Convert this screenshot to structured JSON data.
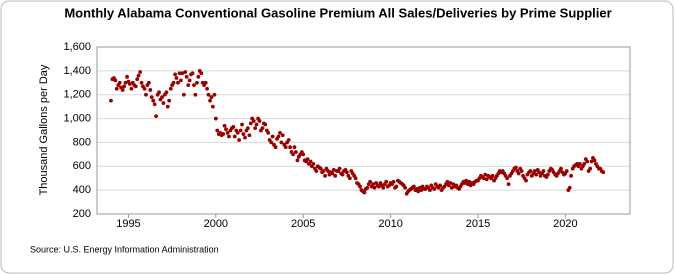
{
  "chart_data": {
    "type": "scatter",
    "title": "Monthly Alabama Conventional Gasoline Premium All Sales/Deliveries by Prime Supplier",
    "ylabel": "Thousand Gallons per Day",
    "source": "Source: U.S. Energy Information Administration",
    "color": "#990000",
    "grid": true,
    "xlim": [
      1993.2,
      2023.7
    ],
    "xticks": [
      1995,
      2000,
      2005,
      2010,
      2015,
      2020
    ],
    "ylim": [
      200,
      1600
    ],
    "yticks": [
      200,
      400,
      600,
      800,
      {
        "value": 1000,
        "label": "1,000"
      },
      {
        "value": 1200,
        "label": "1,200"
      },
      {
        "value": 1400,
        "label": "1,400"
      },
      {
        "value": 1600,
        "label": "1,600"
      }
    ],
    "x": [
      1994,
      1994.08,
      1994.17,
      1994.25,
      1994.33,
      1994.42,
      1994.5,
      1994.58,
      1994.67,
      1994.75,
      1994.83,
      1994.92,
      1995,
      1995.08,
      1995.17,
      1995.25,
      1995.33,
      1995.42,
      1995.5,
      1995.58,
      1995.67,
      1995.75,
      1995.83,
      1995.92,
      1996,
      1996.08,
      1996.17,
      1996.25,
      1996.33,
      1996.42,
      1996.5,
      1996.58,
      1996.67,
      1996.75,
      1996.83,
      1996.92,
      1997,
      1997.08,
      1997.17,
      1997.25,
      1997.33,
      1997.42,
      1997.5,
      1997.58,
      1997.67,
      1997.75,
      1997.83,
      1997.92,
      1998,
      1998.08,
      1998.17,
      1998.25,
      1998.33,
      1998.42,
      1998.5,
      1998.58,
      1998.67,
      1998.75,
      1998.83,
      1998.92,
      1999,
      1999.08,
      1999.17,
      1999.25,
      1999.33,
      1999.42,
      1999.5,
      1999.58,
      1999.67,
      1999.75,
      1999.83,
      1999.92,
      2000,
      2000.08,
      2000.17,
      2000.25,
      2000.33,
      2000.42,
      2000.5,
      2000.58,
      2000.67,
      2000.75,
      2000.83,
      2000.92,
      2001,
      2001.08,
      2001.17,
      2001.25,
      2001.33,
      2001.42,
      2001.5,
      2001.58,
      2001.67,
      2001.75,
      2001.83,
      2001.92,
      2002,
      2002.08,
      2002.17,
      2002.25,
      2002.33,
      2002.42,
      2002.5,
      2002.58,
      2002.67,
      2002.75,
      2002.83,
      2002.92,
      2003,
      2003.08,
      2003.17,
      2003.25,
      2003.33,
      2003.42,
      2003.5,
      2003.58,
      2003.67,
      2003.75,
      2003.83,
      2003.92,
      2004,
      2004.08,
      2004.17,
      2004.25,
      2004.33,
      2004.42,
      2004.5,
      2004.58,
      2004.67,
      2004.75,
      2004.83,
      2004.92,
      2005,
      2005.08,
      2005.17,
      2005.25,
      2005.33,
      2005.42,
      2005.5,
      2005.58,
      2005.67,
      2005.75,
      2005.83,
      2005.92,
      2006,
      2006.08,
      2006.17,
      2006.25,
      2006.33,
      2006.42,
      2006.5,
      2006.58,
      2006.67,
      2006.75,
      2006.83,
      2006.92,
      2007,
      2007.08,
      2007.17,
      2007.25,
      2007.33,
      2007.42,
      2007.5,
      2007.58,
      2007.67,
      2007.75,
      2007.83,
      2007.92,
      2008,
      2008.08,
      2008.17,
      2008.25,
      2008.33,
      2008.42,
      2008.5,
      2008.58,
      2008.67,
      2008.75,
      2008.83,
      2008.92,
      2009,
      2009.08,
      2009.17,
      2009.25,
      2009.33,
      2009.42,
      2009.5,
      2009.58,
      2009.67,
      2009.75,
      2009.83,
      2009.92,
      2010,
      2010.08,
      2010.17,
      2010.25,
      2010.33,
      2010.42,
      2010.5,
      2010.58,
      2010.67,
      2010.75,
      2010.83,
      2010.92,
      2011,
      2011.08,
      2011.17,
      2011.25,
      2011.33,
      2011.42,
      2011.5,
      2011.58,
      2011.67,
      2011.75,
      2011.83,
      2011.92,
      2012,
      2012.08,
      2012.17,
      2012.25,
      2012.33,
      2012.42,
      2012.5,
      2012.58,
      2012.67,
      2012.75,
      2012.83,
      2012.92,
      2013,
      2013.08,
      2013.17,
      2013.25,
      2013.33,
      2013.42,
      2013.5,
      2013.58,
      2013.67,
      2013.75,
      2013.83,
      2013.92,
      2014,
      2014.08,
      2014.17,
      2014.25,
      2014.33,
      2014.42,
      2014.5,
      2014.58,
      2014.67,
      2014.75,
      2014.83,
      2014.92,
      2015,
      2015.08,
      2015.17,
      2015.25,
      2015.33,
      2015.42,
      2015.5,
      2015.58,
      2015.67,
      2015.75,
      2015.83,
      2015.92,
      2016,
      2016.08,
      2016.17,
      2016.25,
      2016.33,
      2016.42,
      2016.5,
      2016.58,
      2016.67,
      2016.75,
      2016.83,
      2016.92,
      2017,
      2017.08,
      2017.17,
      2017.25,
      2017.33,
      2017.42,
      2017.5,
      2017.58,
      2017.67,
      2017.75,
      2017.83,
      2017.92,
      2018,
      2018.08,
      2018.17,
      2018.25,
      2018.33,
      2018.42,
      2018.5,
      2018.58,
      2018.67,
      2018.75,
      2018.83,
      2018.92,
      2019,
      2019.08,
      2019.17,
      2019.25,
      2019.33,
      2019.42,
      2019.5,
      2019.58,
      2019.67,
      2019.75,
      2019.83,
      2019.92,
      2020,
      2020.08,
      2020.17,
      2020.25,
      2020.33,
      2020.42,
      2020.5,
      2020.58,
      2020.67,
      2020.75,
      2020.83,
      2020.92,
      2021,
      2021.08,
      2021.17,
      2021.25,
      2021.33,
      2021.42,
      2021.5,
      2021.58,
      2021.67,
      2021.75,
      2021.83,
      2021.92,
      2022,
      2022.08,
      2022.17
    ],
    "values": [
      1150,
      1330,
      1340,
      1320,
      1250,
      1280,
      1300,
      1260,
      1240,
      1270,
      1300,
      1350,
      1310,
      1290,
      1250,
      1300,
      1280,
      1270,
      1330,
      1360,
      1390,
      1300,
      1270,
      1250,
      1200,
      1280,
      1300,
      1240,
      1180,
      1150,
      1120,
      1020,
      1200,
      1220,
      1160,
      1180,
      1130,
      1200,
      1220,
      1100,
      1150,
      1250,
      1280,
      1300,
      1370,
      1340,
      1300,
      1380,
      1320,
      1380,
      1200,
      1390,
      1350,
      1280,
      1320,
      1370,
      1380,
      1280,
      1200,
      1300,
      1350,
      1400,
      1380,
      1300,
      1280,
      1300,
      1250,
      1200,
      1150,
      1180,
      1100,
      1200,
      1000,
      900,
      870,
      880,
      860,
      870,
      940,
      910,
      880,
      850,
      900,
      920,
      930,
      850,
      900,
      880,
      820,
      900,
      950,
      870,
      840,
      900,
      920,
      860,
      960,
      1000,
      980,
      920,
      950,
      1000,
      980,
      900,
      920,
      960,
      950,
      900,
      880,
      820,
      800,
      850,
      780,
      760,
      830,
      850,
      880,
      800,
      860,
      780,
      760,
      800,
      820,
      760,
      720,
      700,
      760,
      720,
      650,
      680,
      700,
      720,
      700,
      650,
      640,
      660,
      620,
      640,
      600,
      620,
      580,
      560,
      600,
      590,
      580,
      550,
      560,
      520,
      580,
      560,
      530,
      550,
      540,
      570,
      520,
      560,
      560,
      580,
      540,
      530,
      560,
      570,
      550,
      520,
      500,
      560,
      540,
      520,
      500,
      460,
      450,
      430,
      400,
      390,
      380,
      410,
      420,
      450,
      470,
      430,
      450,
      420,
      460,
      440,
      430,
      460,
      440,
      420,
      450,
      470,
      430,
      440,
      460,
      450,
      470,
      420,
      430,
      480,
      470,
      460,
      450,
      440,
      420,
      370,
      390,
      400,
      410,
      420,
      430,
      400,
      410,
      390,
      420,
      400,
      430,
      410,
      410,
      430,
      420,
      400,
      440,
      420,
      410,
      450,
      430,
      420,
      440,
      400,
      420,
      430,
      450,
      470,
      440,
      460,
      420,
      450,
      430,
      440,
      420,
      410,
      430,
      450,
      470,
      460,
      480,
      450,
      470,
      440,
      460,
      450,
      470,
      480,
      480,
      500,
      520,
      510,
      500,
      530,
      490,
      520,
      510,
      500,
      520,
      480,
      500,
      520,
      540,
      560,
      550,
      560,
      540,
      520,
      500,
      450,
      520,
      540,
      560,
      580,
      590,
      560,
      540,
      580,
      560,
      520,
      500,
      480,
      530,
      550,
      560,
      520,
      540,
      560,
      530,
      570,
      550,
      520,
      540,
      560,
      520,
      510,
      530,
      560,
      580,
      570,
      550,
      530,
      520,
      540,
      560,
      580,
      550,
      530,
      540,
      560,
      400,
      420,
      520,
      580,
      600,
      610,
      620,
      600,
      620,
      580,
      600,
      620,
      660,
      640,
      560,
      580,
      640,
      670,
      650,
      620,
      600,
      580,
      580,
      560,
      550
    ]
  }
}
